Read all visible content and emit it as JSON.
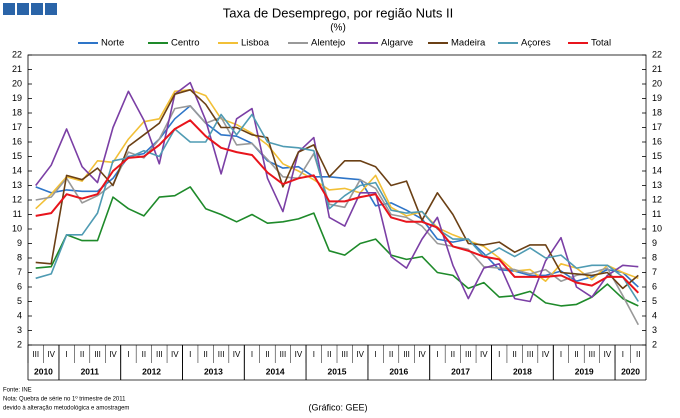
{
  "chart_data": {
    "type": "line",
    "title": "Taxa de Desemprego, por região Nuts II",
    "subtitle": "(%)",
    "categories": [
      "III",
      "IV",
      "I",
      "II",
      "III",
      "IV",
      "I",
      "II",
      "III",
      "IV",
      "I",
      "II",
      "III",
      "IV",
      "I",
      "II",
      "III",
      "IV",
      "I",
      "II",
      "III",
      "IV",
      "I",
      "II",
      "III",
      "IV",
      "I",
      "II",
      "III",
      "IV",
      "I",
      "II",
      "III",
      "IV",
      "I",
      "II",
      "III",
      "IV",
      "I",
      "II"
    ],
    "years": [
      "2010",
      "2011",
      "2012",
      "2013",
      "2014",
      "2015",
      "2016",
      "2017",
      "2018",
      "2019",
      "2020"
    ],
    "ylim": [
      2,
      22
    ],
    "yticks": [
      2,
      3,
      4,
      5,
      6,
      7,
      8,
      9,
      10,
      11,
      12,
      13,
      14,
      15,
      16,
      17,
      18,
      19,
      20,
      21,
      22
    ],
    "grid": false,
    "series": [
      {
        "name": "Norte",
        "color": "#2e75c8",
        "values": [
          12.9,
          12.5,
          12.7,
          12.6,
          12.6,
          13.5,
          15.0,
          15.2,
          16.2,
          17.6,
          18.5,
          17.3,
          16.5,
          16.4,
          15.9,
          14.7,
          14.2,
          14.3,
          13.6,
          13.6,
          13.5,
          13.4,
          11.6,
          11.8,
          11.3,
          10.7,
          9.3,
          9.1,
          9.3,
          8.3,
          7.2,
          7.1,
          6.8,
          6.8,
          7.1,
          6.4,
          6.7,
          7.2,
          7.0,
          6.0
        ]
      },
      {
        "name": "Centro",
        "color": "#1e8a2a",
        "values": [
          7.3,
          7.4,
          9.6,
          9.2,
          9.2,
          12.2,
          11.4,
          10.9,
          12.2,
          12.3,
          12.9,
          11.4,
          11.0,
          10.5,
          11.0,
          10.4,
          10.5,
          10.7,
          11.1,
          8.5,
          8.2,
          9.0,
          9.3,
          8.2,
          7.9,
          8.1,
          7.0,
          6.8,
          5.9,
          6.3,
          5.3,
          5.4,
          5.7,
          4.9,
          4.7,
          4.8,
          5.3,
          6.2,
          5.2,
          4.7
        ]
      },
      {
        "name": "Lisboa",
        "color": "#f2c037",
        "values": [
          11.4,
          12.4,
          13.6,
          13.3,
          14.7,
          14.6,
          16.2,
          17.4,
          17.6,
          19.5,
          19.6,
          19.2,
          17.6,
          17.2,
          16.6,
          15.8,
          14.5,
          14.0,
          13.4,
          12.7,
          12.8,
          12.5,
          13.7,
          11.5,
          10.9,
          11.2,
          10.1,
          9.6,
          9.2,
          8.8,
          8.0,
          7.1,
          7.2,
          6.4,
          7.6,
          7.3,
          6.5,
          7.5,
          7.0,
          6.6
        ]
      },
      {
        "name": "Alentejo",
        "color": "#999999",
        "values": [
          12.0,
          12.2,
          13.5,
          11.8,
          12.3,
          13.1,
          15.3,
          14.9,
          16.2,
          18.3,
          18.5,
          17.3,
          17.7,
          15.8,
          15.9,
          14.8,
          13.6,
          13.5,
          15.2,
          11.7,
          11.5,
          13.4,
          12.8,
          11.0,
          10.8,
          10.2,
          9.0,
          8.8,
          8.6,
          7.4,
          7.3,
          7.2,
          6.9,
          7.2,
          6.4,
          6.8,
          7.0,
          7.3,
          5.4,
          3.4
        ]
      },
      {
        "name": "Algarve",
        "color": "#7b3fa5",
        "values": [
          13.0,
          14.4,
          16.9,
          14.3,
          13.2,
          17.0,
          19.5,
          17.5,
          14.5,
          19.3,
          20.1,
          17.5,
          13.8,
          17.6,
          18.3,
          13.5,
          11.2,
          15.3,
          16.3,
          10.8,
          10.2,
          12.5,
          12.5,
          8.1,
          7.3,
          9.3,
          10.8,
          7.5,
          5.2,
          7.3,
          7.6,
          5.2,
          5.0,
          7.8,
          9.4,
          6.0,
          5.3,
          6.8,
          7.5,
          7.4
        ]
      },
      {
        "name": "Madeira",
        "color": "#6b4015",
        "values": [
          7.7,
          7.6,
          13.7,
          13.4,
          14.2,
          13.0,
          15.7,
          16.5,
          17.3,
          19.3,
          19.6,
          18.6,
          17.0,
          17.0,
          16.5,
          16.3,
          12.9,
          15.3,
          15.8,
          13.6,
          14.7,
          14.7,
          14.3,
          13.0,
          13.3,
          10.6,
          12.5,
          11.0,
          9.0,
          8.9,
          9.1,
          8.4,
          8.9,
          8.9,
          7.0,
          6.9,
          6.8,
          7.0,
          5.9,
          6.8
        ]
      },
      {
        "name": "Açores",
        "color": "#4f9bb3",
        "values": [
          6.6,
          6.9,
          9.6,
          9.6,
          11.1,
          14.7,
          14.9,
          15.4,
          15.0,
          16.9,
          16.0,
          16.0,
          17.9,
          16.5,
          17.9,
          16.0,
          15.7,
          15.6,
          15.4,
          11.4,
          12.3,
          13.0,
          13.2,
          11.3,
          11.1,
          11.2,
          10.0,
          9.3,
          9.3,
          8.1,
          8.7,
          8.1,
          8.7,
          8.0,
          8.2,
          7.3,
          7.5,
          7.5,
          6.7,
          5.0
        ]
      },
      {
        "name": "Total",
        "color": "#e8141c",
        "values": [
          10.9,
          11.1,
          12.4,
          12.1,
          12.4,
          14.0,
          14.9,
          15.0,
          15.8,
          16.9,
          17.5,
          16.4,
          15.6,
          15.3,
          15.1,
          13.9,
          13.1,
          13.5,
          13.7,
          11.9,
          11.9,
          12.2,
          12.4,
          10.8,
          10.5,
          10.5,
          10.1,
          8.8,
          8.5,
          8.1,
          7.9,
          6.7,
          6.7,
          6.7,
          6.8,
          6.3,
          6.1,
          6.7,
          6.7,
          5.6
        ]
      }
    ],
    "notes": [
      "Fonte: INE",
      "Nota: Quebra de série no 1º trimestre de 2011",
      "devido à alteração metodológica e amostragem"
    ],
    "credit": "(Gráfico: GEE)"
  }
}
